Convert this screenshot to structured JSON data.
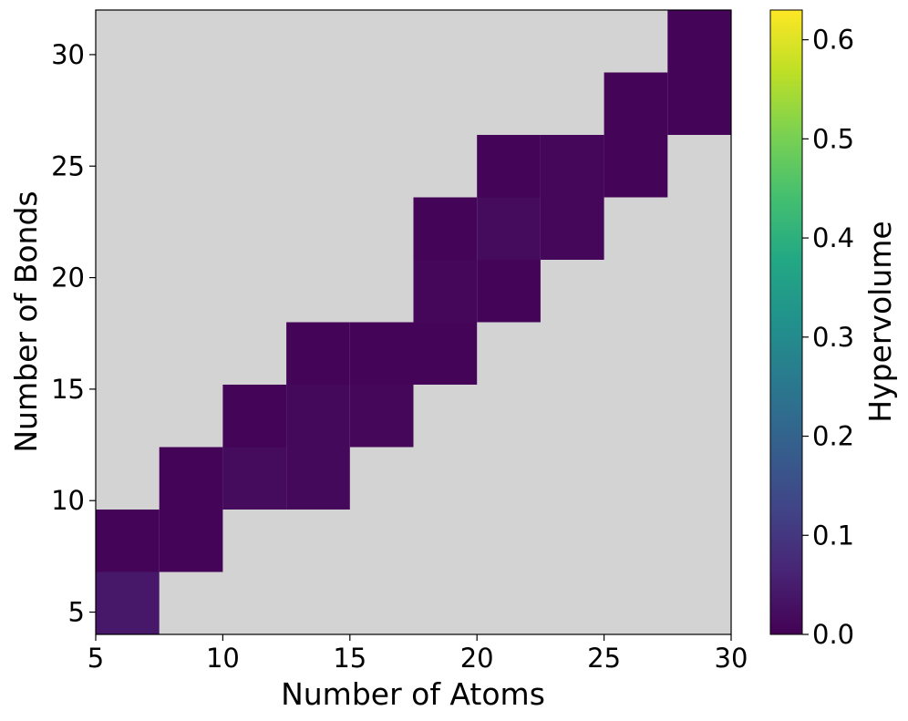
{
  "chart_data": {
    "type": "heatmap",
    "title": "",
    "xlabel": "Number of Atoms",
    "ylabel": "Number of Bonds",
    "xlim": [
      5,
      30
    ],
    "ylim": [
      4,
      32
    ],
    "x_bin_width": 2.5,
    "y_bin_width": 2.8,
    "xticks": [
      "5",
      "10",
      "15",
      "20",
      "25",
      "30"
    ],
    "yticks": [
      "5",
      "10",
      "15",
      "20",
      "25",
      "30"
    ],
    "background_color": "#d3d3d3",
    "colorbar": {
      "label": "Hypervolume",
      "range": [
        0.0,
        0.63
      ],
      "colormap": "viridis",
      "ticks": [
        "0.0",
        "0.1",
        "0.2",
        "0.3",
        "0.4",
        "0.5",
        "0.6"
      ]
    },
    "cells": [
      {
        "x": 6.25,
        "y": 5.4,
        "value": 0.04
      },
      {
        "x": 6.25,
        "y": 8.2,
        "value": 0.005
      },
      {
        "x": 8.75,
        "y": 8.2,
        "value": 0.005
      },
      {
        "x": 8.75,
        "y": 11.0,
        "value": 0.005
      },
      {
        "x": 11.25,
        "y": 11.0,
        "value": 0.02
      },
      {
        "x": 13.75,
        "y": 11.0,
        "value": 0.015
      },
      {
        "x": 11.25,
        "y": 13.8,
        "value": 0.005
      },
      {
        "x": 13.75,
        "y": 13.8,
        "value": 0.015
      },
      {
        "x": 16.25,
        "y": 13.8,
        "value": 0.01
      },
      {
        "x": 13.75,
        "y": 16.6,
        "value": 0.005
      },
      {
        "x": 16.25,
        "y": 16.6,
        "value": 0.005
      },
      {
        "x": 18.75,
        "y": 16.6,
        "value": 0.005
      },
      {
        "x": 18.75,
        "y": 19.4,
        "value": 0.01
      },
      {
        "x": 21.25,
        "y": 19.4,
        "value": 0.005
      },
      {
        "x": 18.75,
        "y": 22.2,
        "value": 0.005
      },
      {
        "x": 21.25,
        "y": 22.2,
        "value": 0.02
      },
      {
        "x": 23.75,
        "y": 22.2,
        "value": 0.01
      },
      {
        "x": 21.25,
        "y": 25.0,
        "value": 0.005
      },
      {
        "x": 23.75,
        "y": 25.0,
        "value": 0.01
      },
      {
        "x": 26.25,
        "y": 25.0,
        "value": 0.005
      },
      {
        "x": 26.25,
        "y": 27.8,
        "value": 0.005
      },
      {
        "x": 28.75,
        "y": 27.8,
        "value": 0.005
      },
      {
        "x": 28.75,
        "y": 30.6,
        "value": 0.005
      }
    ]
  }
}
